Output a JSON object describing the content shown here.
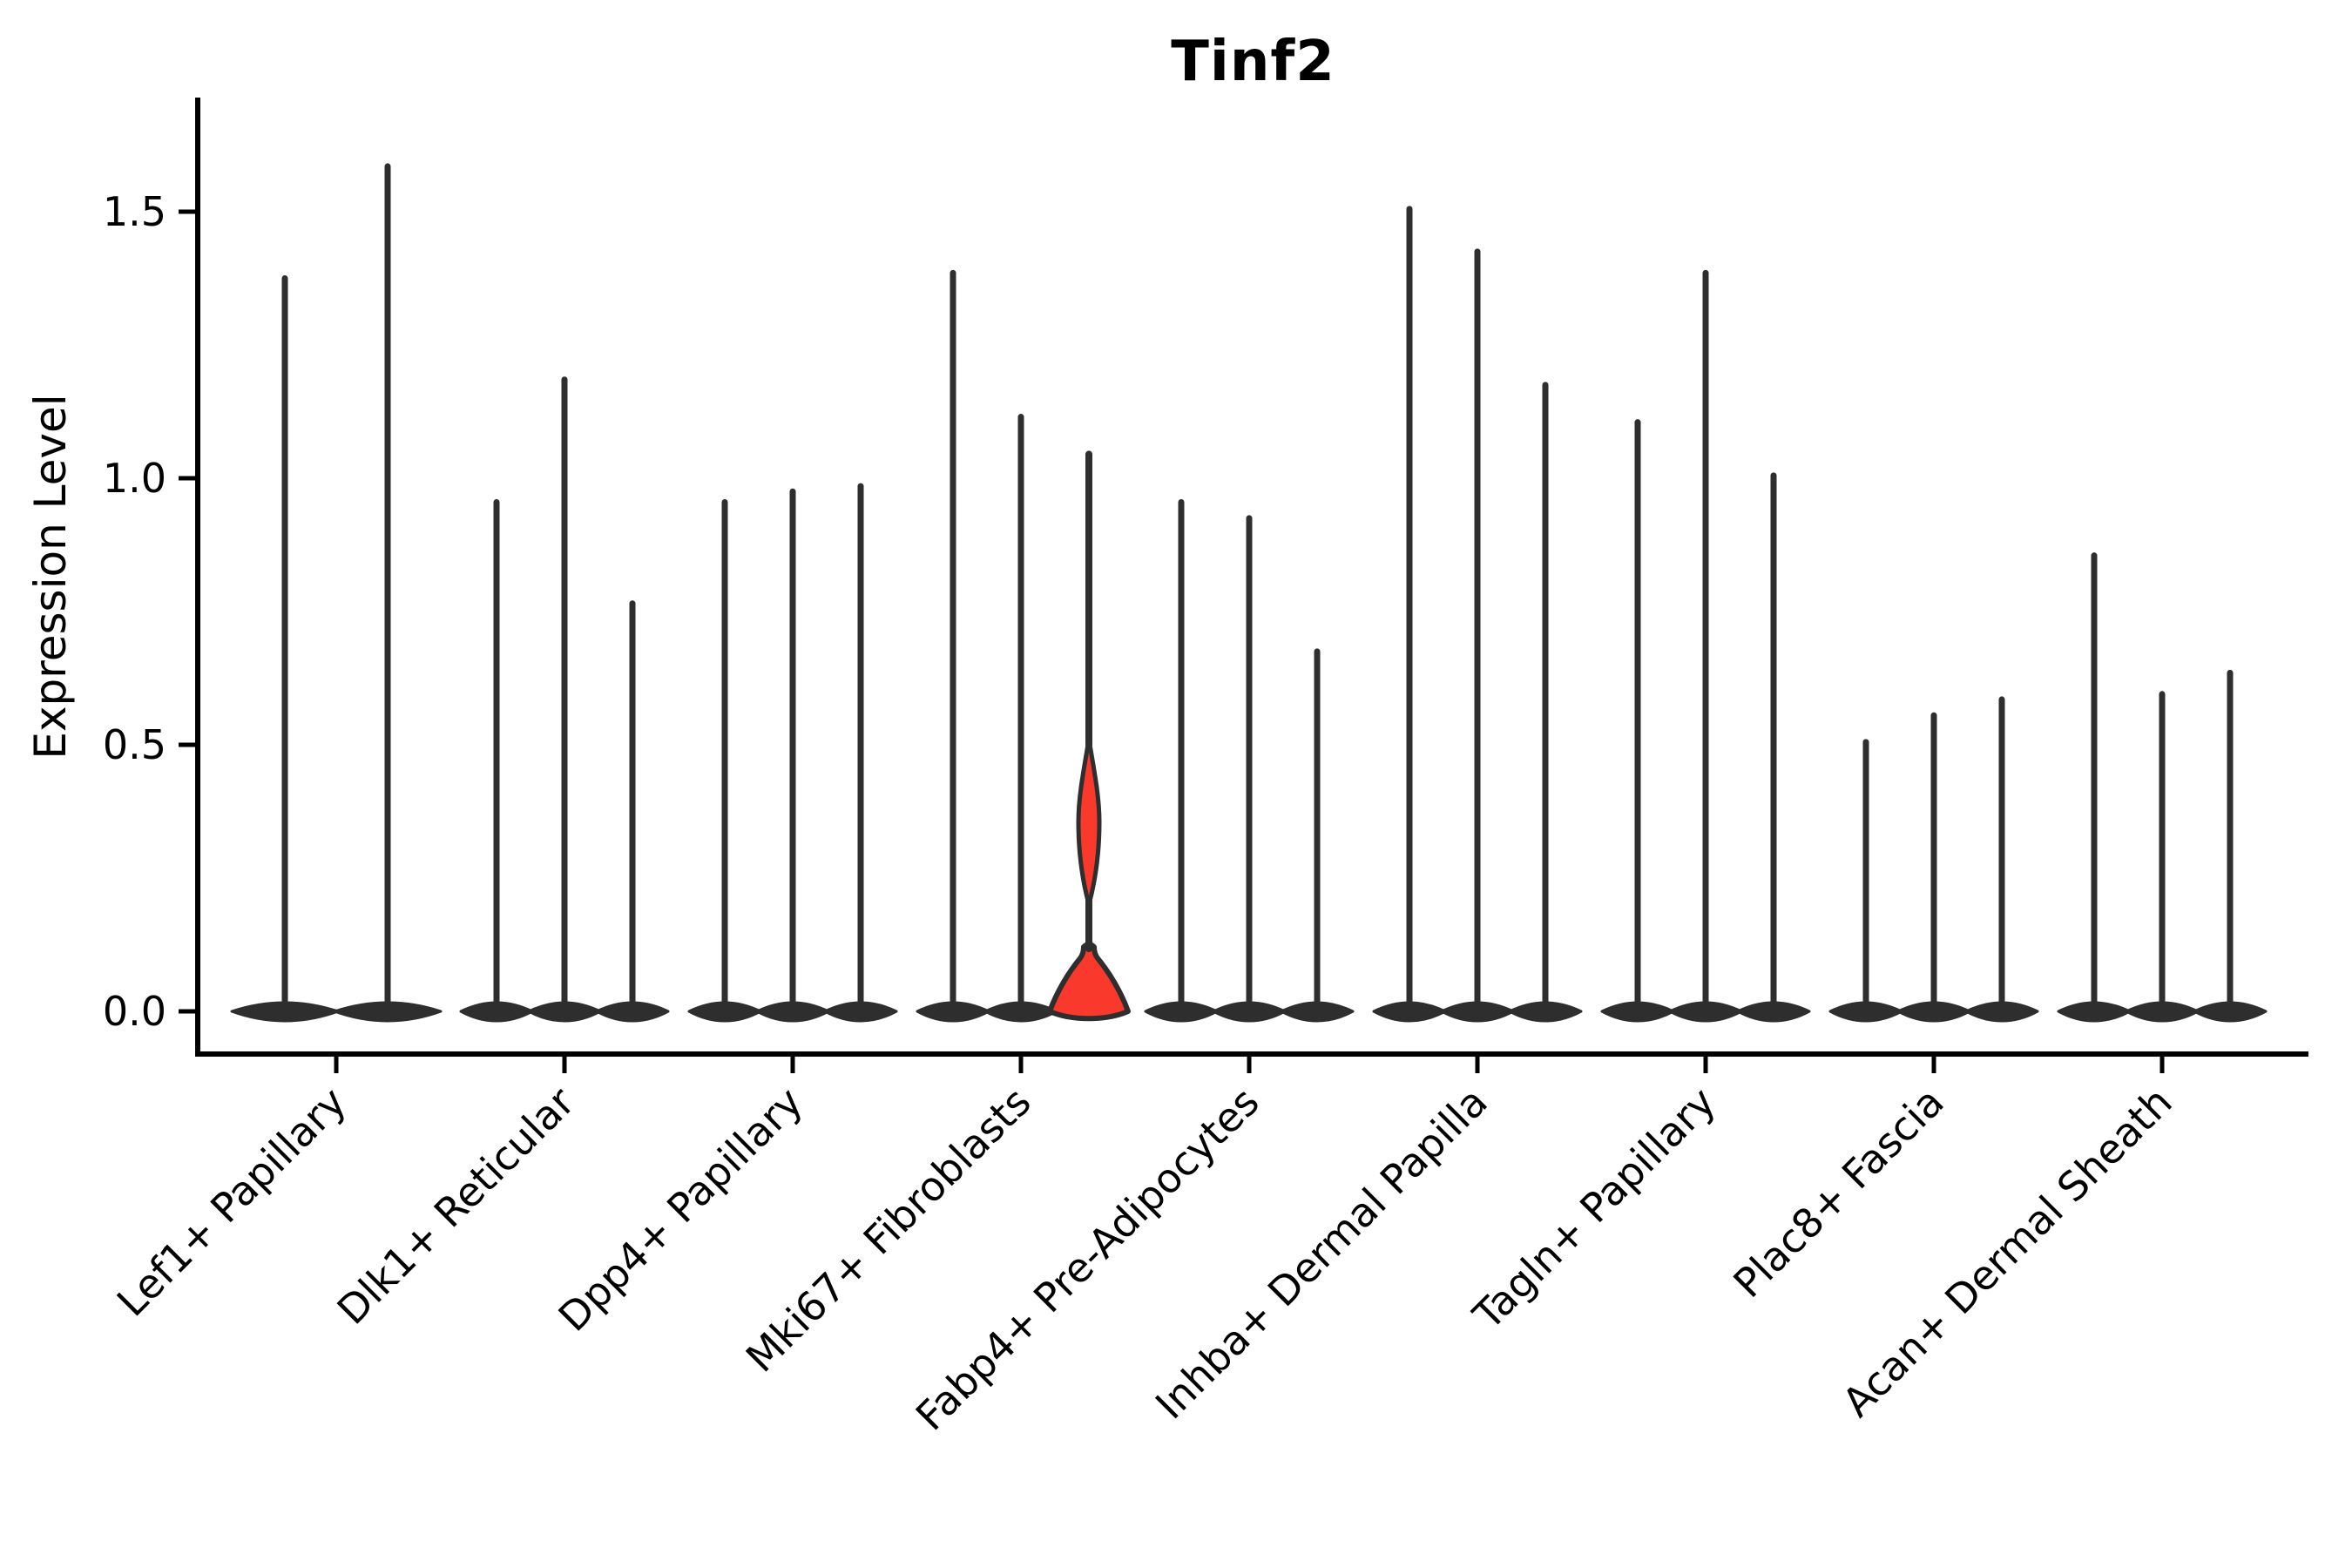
{
  "chart_data": {
    "type": "violin",
    "title": "Tinf2",
    "ylabel": "Expression Level",
    "xlabel": "",
    "ylim": [
      -0.08,
      1.71
    ],
    "yticks": [
      {
        "value": 0.0,
        "label": "0.0"
      },
      {
        "value": 0.5,
        "label": "0.5"
      },
      {
        "value": 1.0,
        "label": "1.0"
      },
      {
        "value": 1.5,
        "label": "1.5"
      }
    ],
    "grid": false,
    "legend": false,
    "violin_color": "#2e2e2e",
    "axis_color": "#000000",
    "highlight_color": "#f8392c",
    "categories": [
      "Lef1+ Papillary",
      "Dlk1+ Reticular",
      "Dpp4+ Papillary",
      "Mki67+ Fibroblasts",
      "Fabp4+ Pre-Adipocytes",
      "Inhba+ Dermal Papilla",
      "Tagln+ Papillary",
      "Plac8+ Fascia",
      "Acan+ Dermal Sheath"
    ],
    "groups": [
      {
        "category": "Lef1+ Papillary",
        "violins": [
          {
            "max": 1.38
          },
          {
            "max": 1.59
          }
        ]
      },
      {
        "category": "Dlk1+ Reticular",
        "violins": [
          {
            "max": 0.96
          },
          {
            "max": 1.19
          },
          {
            "max": 0.77
          }
        ]
      },
      {
        "category": "Dpp4+ Papillary",
        "violins": [
          {
            "max": 0.96
          },
          {
            "max": 0.98
          },
          {
            "max": 0.99
          }
        ]
      },
      {
        "category": "Mki67+ Fibroblasts",
        "violins": [
          {
            "max": 1.39
          },
          {
            "max": 1.12
          },
          {
            "max": 1.05,
            "highlighted": true
          }
        ]
      },
      {
        "category": "Fabp4+ Pre-Adipocytes",
        "violins": [
          {
            "max": 0.96
          },
          {
            "max": 0.93
          },
          {
            "max": 0.68
          }
        ]
      },
      {
        "category": "Inhba+ Dermal Papilla",
        "violins": [
          {
            "max": 1.51
          },
          {
            "max": 1.43
          },
          {
            "max": 1.18
          }
        ]
      },
      {
        "category": "Tagln+ Papillary",
        "violins": [
          {
            "max": 1.11
          },
          {
            "max": 1.39
          },
          {
            "max": 1.01
          }
        ]
      },
      {
        "category": "Plac8+ Fascia",
        "violins": [
          {
            "max": 0.51
          },
          {
            "max": 0.56
          },
          {
            "max": 0.59
          }
        ]
      },
      {
        "category": "Acan+ Dermal Sheath",
        "violins": [
          {
            "max": 0.86
          },
          {
            "max": 0.6
          },
          {
            "max": 0.64
          }
        ]
      }
    ],
    "highlighted_violin": {
      "category": "Mki67+ Fibroblasts",
      "violin_index": 2,
      "max": 1.05,
      "bulge_range": [
        0.2,
        0.51
      ],
      "bulge_peak_at": 0.33,
      "base_bulk_below": 0.1
    }
  }
}
